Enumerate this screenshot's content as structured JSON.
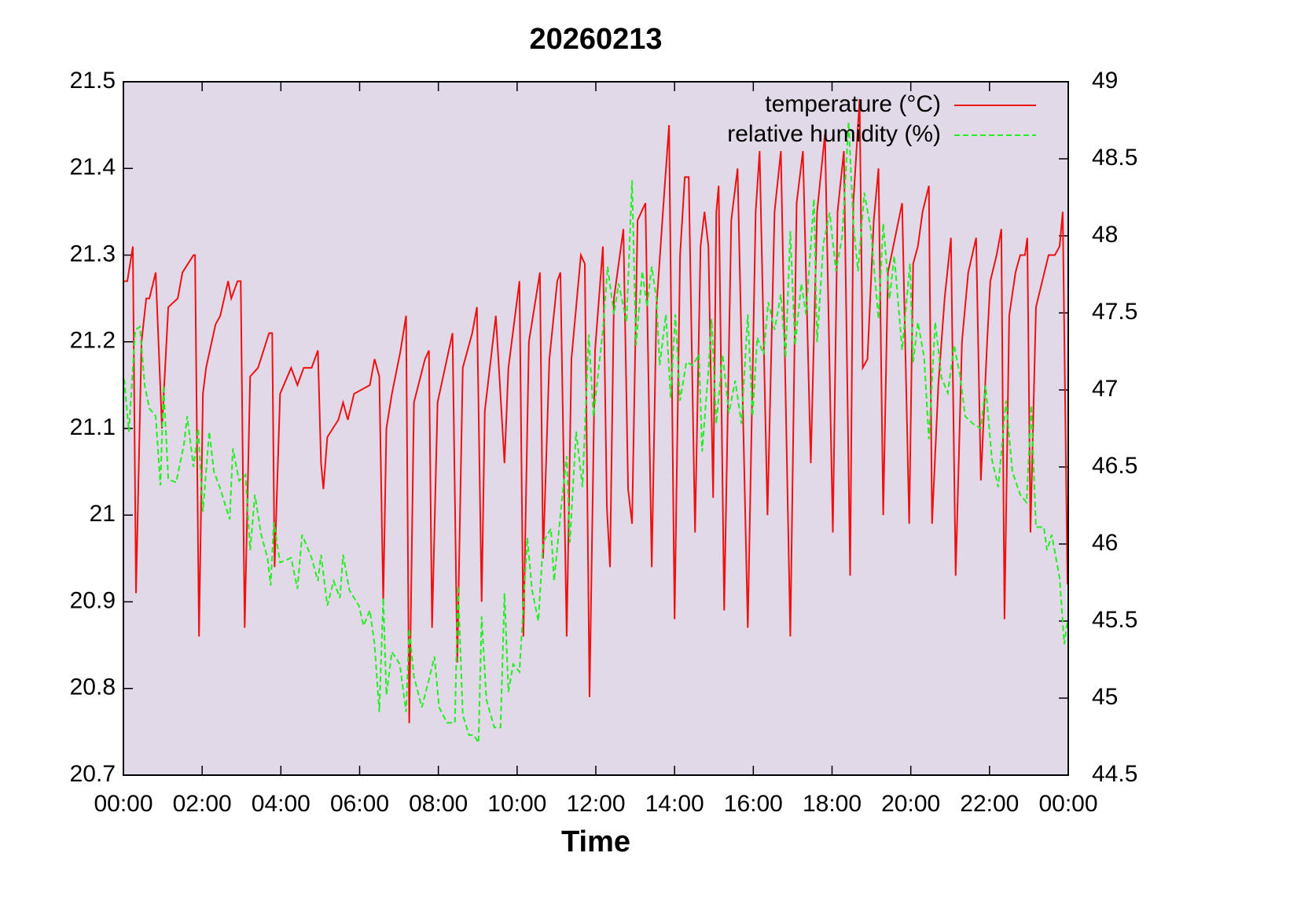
{
  "chart_data": {
    "type": "line",
    "title": "20260213",
    "xlabel": "Time",
    "xlim": [
      0,
      24
    ],
    "xticks": [
      {
        "value": 0,
        "label": "00:00"
      },
      {
        "value": 2,
        "label": "02:00"
      },
      {
        "value": 4,
        "label": "04:00"
      },
      {
        "value": 6,
        "label": "06:00"
      },
      {
        "value": 8,
        "label": "08:00"
      },
      {
        "value": 10,
        "label": "10:00"
      },
      {
        "value": 12,
        "label": "12:00"
      },
      {
        "value": 14,
        "label": "14:00"
      },
      {
        "value": 16,
        "label": "16:00"
      },
      {
        "value": 18,
        "label": "18:00"
      },
      {
        "value": 20,
        "label": "20:00"
      },
      {
        "value": 22,
        "label": "22:00"
      },
      {
        "value": 24,
        "label": "00:00"
      }
    ],
    "ylim": [
      20.7,
      21.5
    ],
    "yticks": [
      20.7,
      20.8,
      20.9,
      21,
      21.1,
      21.2,
      21.3,
      21.4,
      21.5
    ],
    "y2lim": [
      44.5,
      49
    ],
    "y2ticks": [
      44.5,
      45,
      45.5,
      46,
      46.5,
      47,
      47.5,
      48,
      48.5,
      49
    ],
    "legend": "top right",
    "background": "#e1d9e7",
    "series": [
      {
        "name": "temperature (°C)",
        "color": "#ee1111",
        "line_style": "solid",
        "axis": "y",
        "x": [
          0.02,
          0.1,
          0.24,
          0.32,
          0.46,
          0.58,
          0.66,
          0.82,
          0.98,
          1.14,
          1.38,
          1.5,
          1.78,
          1.82,
          1.92,
          2.02,
          2.1,
          2.34,
          2.46,
          2.66,
          2.74,
          2.9,
          2.98,
          3.08,
          3.22,
          3.42,
          3.7,
          3.78,
          3.84,
          3.98,
          4.26,
          4.42,
          4.58,
          4.78,
          4.94,
          5.02,
          5.08,
          5.18,
          5.46,
          5.58,
          5.7,
          5.86,
          6.26,
          6.38,
          6.5,
          6.6,
          6.68,
          6.82,
          7.04,
          7.18,
          7.26,
          7.38,
          7.66,
          7.76,
          7.84,
          7.98,
          8.36,
          8.48,
          8.62,
          8.86,
          8.98,
          9.1,
          9.18,
          9.46,
          9.68,
          9.78,
          10.06,
          10.16,
          10.3,
          10.58,
          10.66,
          10.82,
          11.02,
          11.1,
          11.26,
          11.38,
          11.62,
          11.72,
          11.84,
          11.98,
          12.18,
          12.28,
          12.36,
          12.46,
          12.7,
          12.82,
          12.92,
          13.06,
          13.26,
          13.42,
          13.54,
          13.72,
          13.86,
          14.0,
          14.14,
          14.26,
          14.36,
          14.52,
          14.66,
          14.76,
          14.86,
          14.98,
          15.06,
          15.12,
          15.26,
          15.44,
          15.6,
          15.86,
          16.06,
          16.16,
          16.36,
          16.54,
          16.7,
          16.94,
          17.1,
          17.26,
          17.46,
          17.62,
          17.82,
          18.02,
          18.14,
          18.3,
          18.46,
          18.54,
          18.7,
          18.78,
          18.9,
          19.06,
          19.18,
          19.3,
          19.42,
          19.78,
          19.96,
          20.06,
          20.18,
          20.3,
          20.46,
          20.54,
          20.7,
          20.86,
          21.02,
          21.14,
          21.3,
          21.46,
          21.66,
          21.78,
          21.94,
          22.02,
          22.18,
          22.3,
          22.38,
          22.5,
          22.66,
          22.78,
          22.9,
          22.96,
          23.04,
          23.18,
          23.34,
          23.5,
          23.66,
          23.78,
          23.86,
          23.98
        ],
        "values": [
          21.27,
          21.27,
          21.31,
          20.91,
          21.2,
          21.25,
          21.25,
          21.28,
          21.1,
          21.24,
          21.25,
          21.28,
          21.3,
          21.3,
          20.86,
          21.14,
          21.17,
          21.22,
          21.23,
          21.27,
          21.25,
          21.27,
          21.27,
          20.87,
          21.16,
          21.17,
          21.21,
          21.21,
          20.94,
          21.14,
          21.17,
          21.15,
          21.17,
          21.17,
          21.19,
          21.06,
          21.03,
          21.09,
          21.11,
          21.13,
          21.11,
          21.14,
          21.15,
          21.18,
          21.16,
          20.9,
          21.1,
          21.14,
          21.19,
          21.23,
          20.76,
          21.13,
          21.18,
          21.19,
          20.87,
          21.13,
          21.21,
          20.83,
          21.17,
          21.21,
          21.24,
          20.9,
          21.12,
          21.23,
          21.06,
          21.17,
          21.27,
          20.86,
          21.2,
          21.28,
          20.95,
          21.18,
          21.27,
          21.28,
          20.86,
          21.18,
          21.3,
          21.29,
          20.79,
          21.19,
          21.31,
          21.01,
          20.94,
          21.25,
          21.33,
          21.03,
          20.99,
          21.34,
          21.36,
          20.94,
          21.24,
          21.36,
          21.45,
          20.88,
          21.3,
          21.39,
          21.39,
          20.98,
          21.31,
          21.35,
          21.31,
          21.02,
          21.35,
          21.38,
          20.89,
          21.34,
          21.4,
          20.87,
          21.35,
          21.42,
          21.0,
          21.35,
          21.42,
          20.86,
          21.36,
          21.42,
          21.06,
          21.35,
          21.44,
          20.98,
          21.35,
          21.42,
          20.93,
          21.36,
          21.48,
          21.17,
          21.18,
          21.34,
          21.4,
          21.0,
          21.28,
          21.36,
          20.99,
          21.29,
          21.31,
          21.35,
          21.38,
          20.99,
          21.15,
          21.25,
          21.32,
          20.93,
          21.2,
          21.28,
          21.32,
          21.04,
          21.2,
          21.27,
          21.3,
          21.33,
          20.88,
          21.23,
          21.28,
          21.3,
          21.3,
          21.32,
          20.98,
          21.24,
          21.27,
          21.3,
          21.3,
          21.31,
          21.35,
          20.92
        ]
      },
      {
        "name": "relative humidity (%)",
        "color": "#22ee22",
        "line_style": "dashed",
        "axis": "y2",
        "x": [
          0.02,
          0.14,
          0.3,
          0.42,
          0.54,
          0.66,
          0.82,
          0.94,
          1.02,
          1.14,
          1.34,
          1.54,
          1.62,
          1.78,
          1.9,
          2.02,
          2.18,
          2.3,
          2.46,
          2.7,
          2.78,
          2.94,
          3.1,
          3.22,
          3.34,
          3.5,
          3.66,
          3.74,
          3.82,
          3.98,
          4.26,
          4.42,
          4.54,
          4.78,
          4.94,
          5.02,
          5.18,
          5.34,
          5.5,
          5.58,
          5.74,
          5.98,
          6.1,
          6.26,
          6.38,
          6.5,
          6.6,
          6.68,
          6.82,
          7.02,
          7.18,
          7.26,
          7.38,
          7.58,
          7.78,
          7.9,
          8.02,
          8.22,
          8.42,
          8.5,
          8.62,
          8.78,
          8.9,
          9.02,
          9.1,
          9.22,
          9.42,
          9.58,
          9.68,
          9.78,
          9.9,
          10.06,
          10.26,
          10.38,
          10.54,
          10.66,
          10.86,
          10.94,
          11.14,
          11.26,
          11.34,
          11.5,
          11.66,
          11.82,
          11.94,
          12.18,
          12.3,
          12.46,
          12.58,
          12.78,
          12.92,
          13.02,
          13.18,
          13.3,
          13.42,
          13.54,
          13.62,
          13.78,
          13.9,
          14.02,
          14.14,
          14.3,
          14.46,
          14.62,
          14.7,
          14.86,
          14.94,
          15.06,
          15.22,
          15.38,
          15.54,
          15.7,
          15.86,
          15.98,
          16.1,
          16.26,
          16.38,
          16.54,
          16.7,
          16.82,
          16.94,
          17.06,
          17.22,
          17.34,
          17.54,
          17.62,
          17.78,
          17.94,
          18.1,
          18.26,
          18.42,
          18.54,
          18.66,
          18.82,
          18.98,
          19.18,
          19.3,
          19.46,
          19.58,
          19.78,
          19.98,
          20.06,
          20.18,
          20.34,
          20.46,
          20.62,
          20.78,
          20.94,
          21.1,
          21.26,
          21.38,
          21.58,
          21.78,
          21.9,
          22.06,
          22.22,
          22.42,
          22.58,
          22.78,
          22.94,
          23.06,
          23.18,
          23.38,
          23.46,
          23.58,
          23.78,
          23.9,
          23.98
        ],
        "values": [
          47.07,
          46.73,
          47.39,
          47.41,
          47.03,
          46.88,
          46.83,
          46.38,
          47.03,
          46.42,
          46.4,
          46.65,
          46.83,
          46.5,
          46.75,
          46.21,
          46.73,
          46.47,
          46.36,
          46.16,
          46.62,
          46.41,
          46.45,
          45.96,
          46.32,
          46.06,
          45.91,
          45.73,
          46.14,
          45.88,
          45.91,
          45.71,
          46.06,
          45.91,
          45.76,
          45.93,
          45.6,
          45.76,
          45.65,
          45.93,
          45.7,
          45.6,
          45.47,
          45.57,
          45.35,
          44.91,
          45.65,
          45.02,
          45.3,
          45.22,
          44.91,
          45.45,
          45.14,
          44.94,
          45.14,
          45.27,
          44.94,
          44.84,
          44.84,
          45.73,
          44.89,
          44.76,
          44.76,
          44.71,
          45.53,
          44.99,
          44.81,
          44.81,
          45.68,
          45.04,
          45.22,
          45.17,
          46.04,
          45.7,
          45.5,
          46.01,
          46.1,
          45.76,
          46.29,
          46.57,
          46.01,
          46.73,
          46.37,
          47.36,
          46.83,
          47.39,
          47.8,
          47.49,
          47.69,
          47.44,
          48.36,
          47.29,
          47.77,
          47.54,
          47.8,
          47.59,
          47.16,
          47.49,
          46.95,
          47.49,
          46.93,
          47.18,
          47.16,
          47.23,
          46.6,
          47.13,
          47.46,
          46.78,
          47.23,
          46.85,
          47.06,
          46.78,
          47.49,
          46.83,
          47.34,
          47.23,
          47.57,
          47.39,
          47.62,
          47.21,
          48.03,
          47.29,
          47.69,
          47.49,
          48.24,
          47.31,
          47.95,
          48.15,
          47.77,
          48.0,
          48.74,
          48.08,
          47.77,
          48.28,
          48.05,
          47.46,
          48.08,
          47.59,
          47.87,
          47.26,
          47.82,
          47.18,
          47.44,
          47.21,
          46.68,
          47.44,
          47.08,
          46.98,
          47.29,
          47.08,
          46.83,
          46.78,
          46.75,
          47.03,
          46.55,
          46.37,
          46.93,
          46.47,
          46.32,
          46.27,
          46.9,
          46.11,
          46.11,
          45.96,
          46.06,
          45.78,
          45.35,
          45.5
        ]
      }
    ]
  }
}
